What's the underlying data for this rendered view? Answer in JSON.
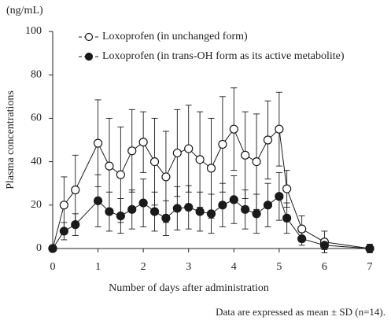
{
  "chart_data": {
    "type": "line",
    "unit_label": "(ng/mL)",
    "ylabel": "Plasma concentrations",
    "xlabel": "Number of days after administration",
    "note": "Data are expressed as mean ± SD (n=14).",
    "xlim": [
      0,
      7
    ],
    "xticks": [
      0,
      1,
      2,
      3,
      4,
      5,
      6,
      7
    ],
    "ylim": [
      0,
      100
    ],
    "yticks": [
      0,
      20,
      40,
      60,
      80,
      100
    ],
    "legend": "upper left",
    "x": [
      0,
      0.25,
      0.5,
      1,
      1.25,
      1.5,
      1.75,
      2,
      2.25,
      2.5,
      2.75,
      3,
      3.25,
      3.5,
      3.75,
      4,
      4.25,
      4.5,
      4.75,
      5,
      5.17,
      5.5,
      6,
      7
    ],
    "series": [
      {
        "name": "Loxoprofen (in unchanged form)",
        "color": "#1a1a1a",
        "marker_fill": "#ffffff",
        "values": [
          0,
          20,
          27,
          48.5,
          38,
          34,
          45,
          49,
          40,
          33,
          44,
          46,
          41,
          37,
          48,
          55,
          43,
          40,
          50,
          55,
          27.5,
          9,
          3,
          0
        ],
        "errors": [
          0,
          13,
          16,
          20,
          22,
          22,
          19,
          14,
          20,
          21,
          20,
          20,
          22,
          23,
          22,
          19,
          20,
          22,
          18,
          17,
          8.5,
          6,
          5,
          2
        ]
      },
      {
        "name": "Loxoprofen (in trans-OH form as its active metabolite)",
        "color": "#1a1a1a",
        "marker_fill": "#1a1a1a",
        "values": [
          0,
          8,
          11,
          22,
          17,
          15,
          18,
          21,
          17,
          14,
          18.5,
          19,
          17,
          16,
          20,
          22.5,
          18,
          16,
          20,
          24,
          14,
          4.5,
          1.5,
          0
        ],
        "errors": [
          0,
          4,
          5,
          12,
          9,
          8,
          9,
          11,
          9,
          8,
          10,
          10,
          9,
          9,
          10,
          11,
          9,
          9,
          10,
          11,
          7,
          3,
          2,
          1
        ]
      }
    ]
  }
}
